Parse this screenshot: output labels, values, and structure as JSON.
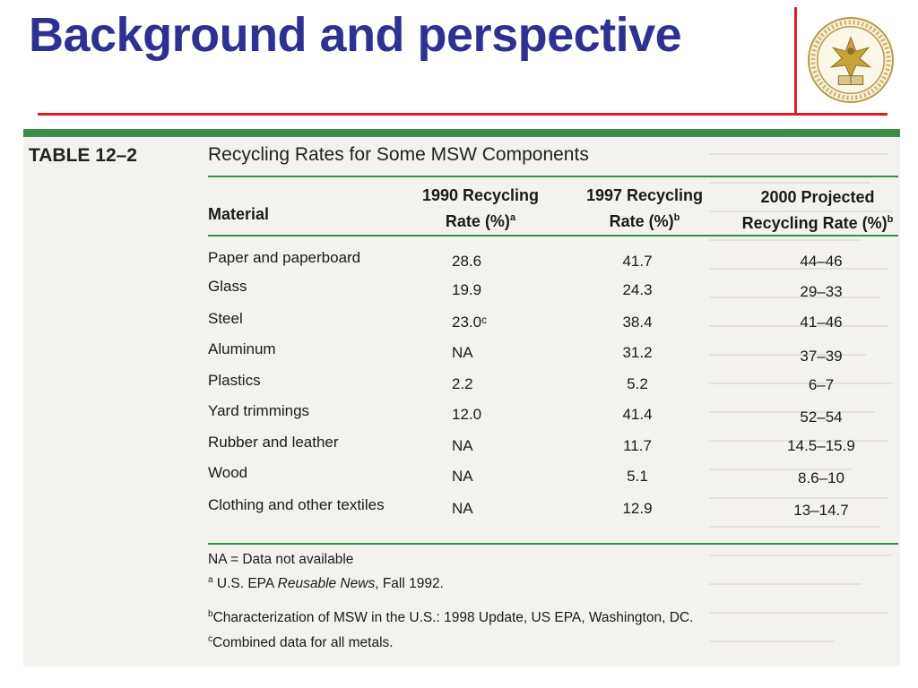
{
  "slide": {
    "title": "Background and perspective"
  },
  "colors": {
    "title": "#2e3192",
    "accent_rules": "#e31b23",
    "table_rules": "#3a8d4a"
  },
  "logo": {
    "icon": "university-seal-icon"
  },
  "table": {
    "label": "TABLE 12–2",
    "caption": "Recycling Rates for Some MSW Components",
    "headers": {
      "material": "Material",
      "rate_1990": {
        "line1": "1990 Recycling",
        "line2": "Rate (%)",
        "sup": "a"
      },
      "rate_1997": {
        "line1": "1997 Recycling",
        "line2": "Rate (%)",
        "sup": "b"
      },
      "rate_2000": {
        "line1": "2000 Projected",
        "line2": "Recycling Rate (%)",
        "sup": "b"
      }
    },
    "rows": [
      {
        "material": "Paper and paperboard",
        "r1990": "28.6",
        "r1997": "41.7",
        "r2000": "44–46"
      },
      {
        "material": "Glass",
        "r1990": "19.9",
        "r1997": "24.3",
        "r2000": "29–33"
      },
      {
        "material": "Steel",
        "r1990": "23.0ᶜ",
        "r1997": "38.4",
        "r2000": "41–46"
      },
      {
        "material": "Aluminum",
        "r1990": "NA",
        "r1997": "31.2",
        "r2000": "37–39"
      },
      {
        "material": "Plastics",
        "r1990": "2.2",
        "r1997": "5.2",
        "r2000": "6–7"
      },
      {
        "material": "Yard trimmings",
        "r1990": "12.0",
        "r1997": "41.4",
        "r2000": "52–54"
      },
      {
        "material": "Rubber and leather",
        "r1990": "NA",
        "r1997": "11.7",
        "r2000": "14.5–15.9"
      },
      {
        "material": "Wood",
        "r1990": "NA",
        "r1997": "5.1",
        "r2000": "8.6–10"
      },
      {
        "material": "Clothing and other textiles",
        "r1990": "NA",
        "r1997": "12.9",
        "r2000": "13–14.7"
      }
    ],
    "footnotes": {
      "na": "NA = Data not available",
      "a_sup": "a",
      "a_pre": " U.S. EPA ",
      "a_italic": "Reusable News",
      "a_post": ", Fall 1992.",
      "b_sup": "b",
      "b_text": "Characterization of MSW in the U.S.: 1998 Update, US EPA, Washington, DC.",
      "c_sup": "c",
      "c_text": "Combined data for all metals."
    }
  }
}
